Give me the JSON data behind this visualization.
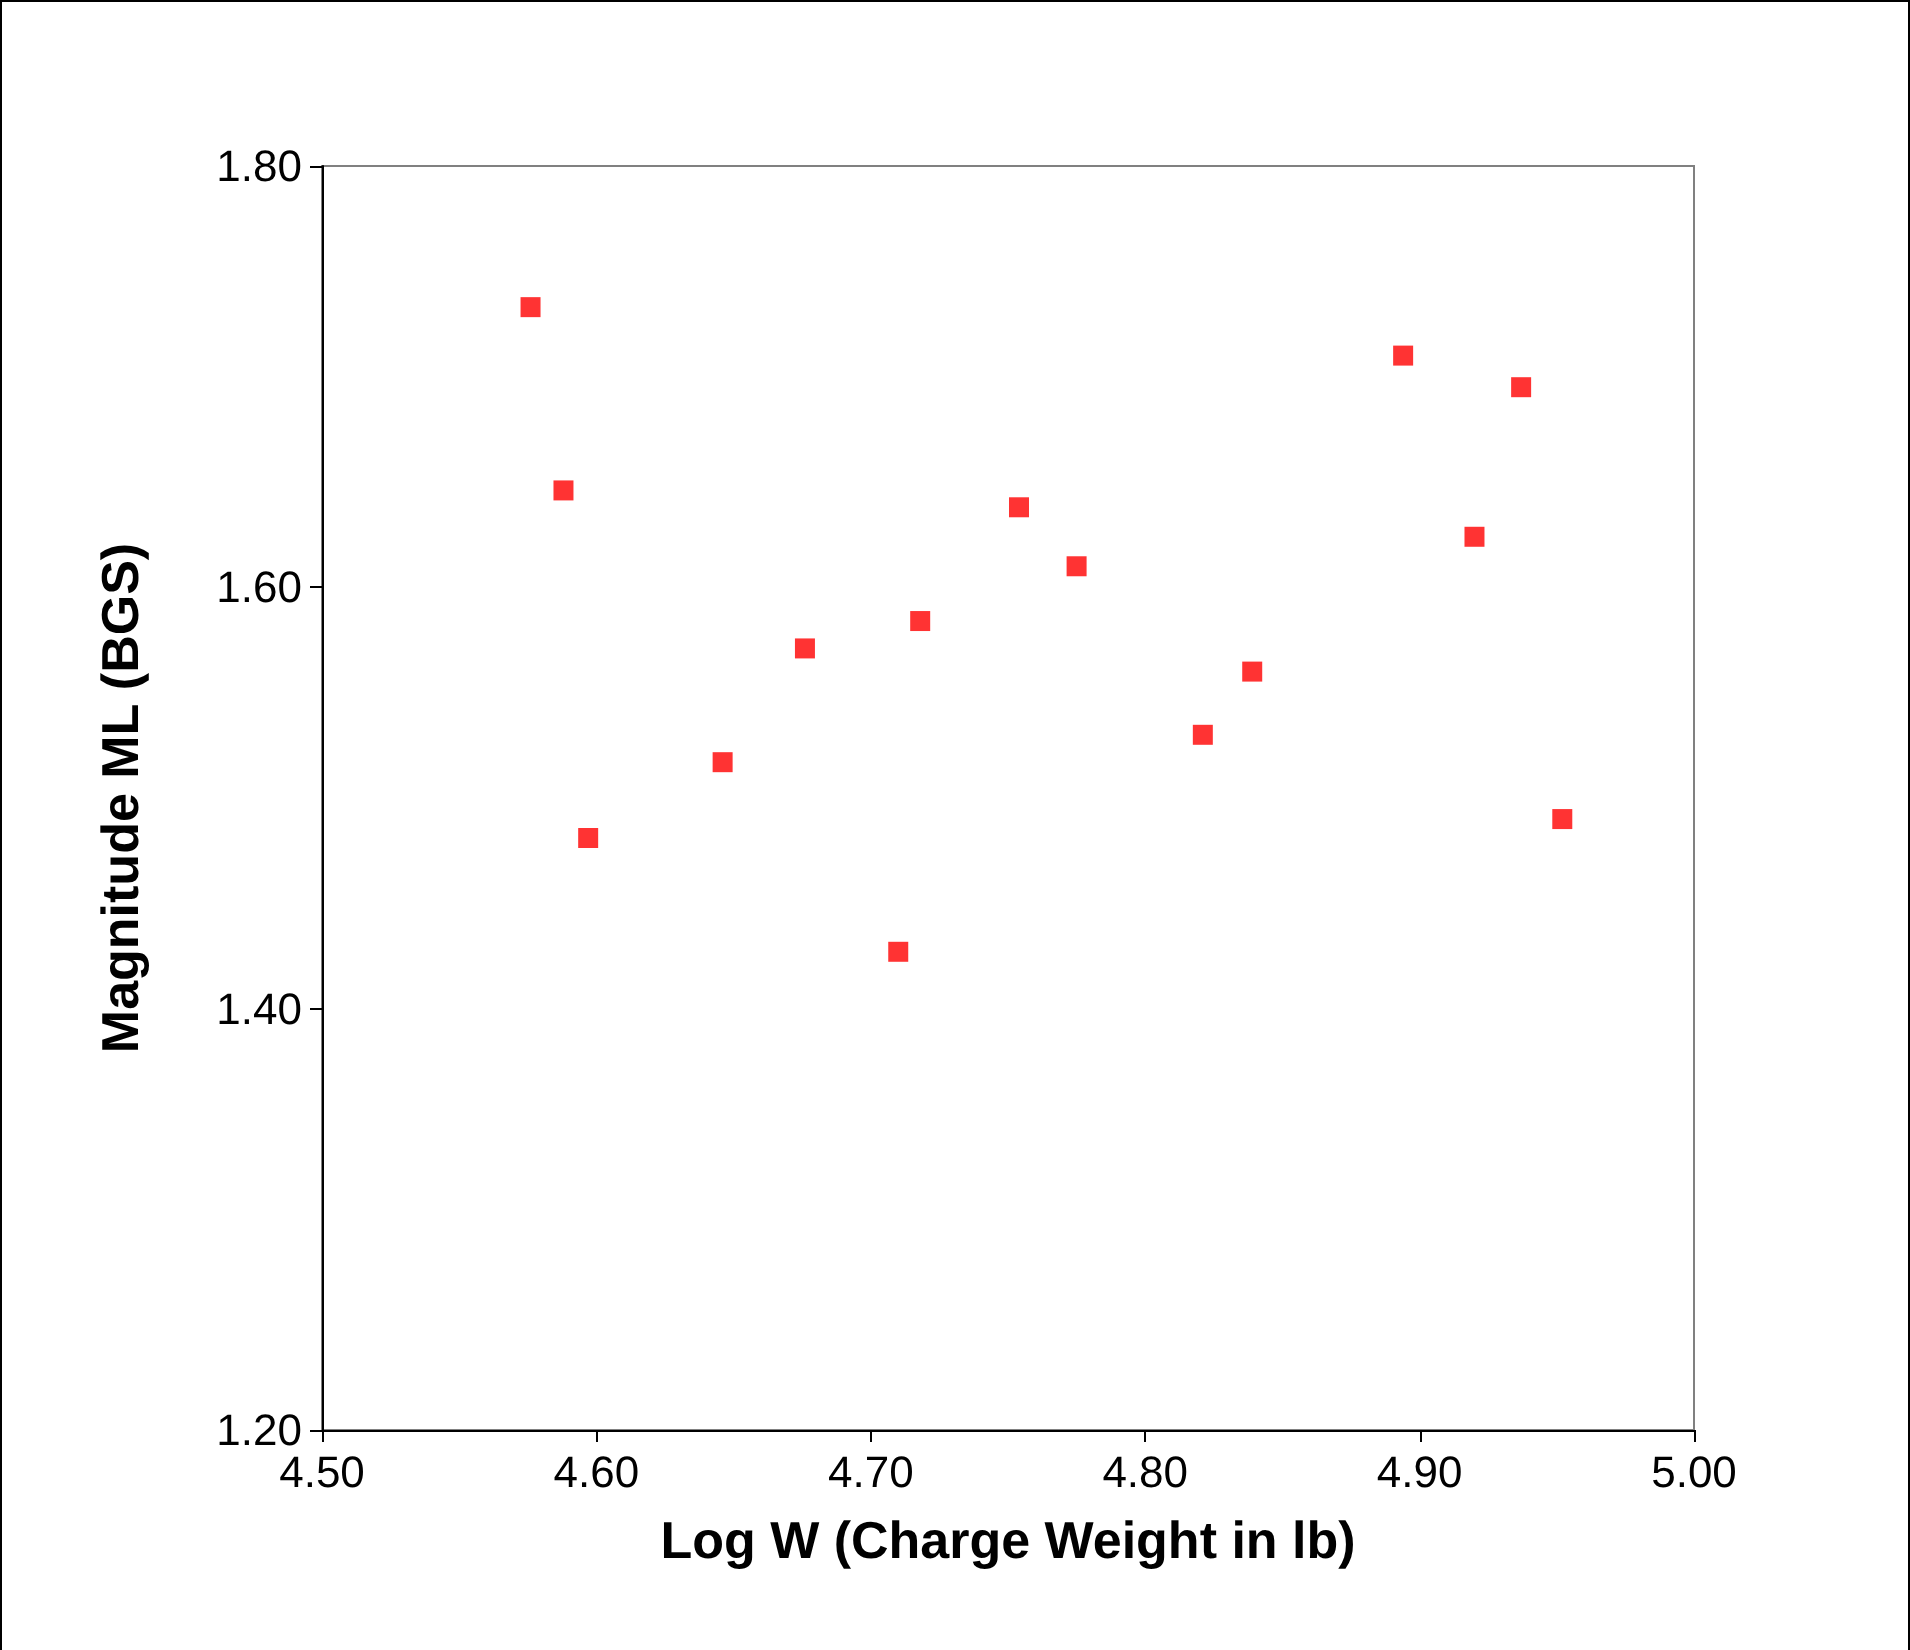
{
  "chart_data": {
    "type": "scatter",
    "xlabel": "Log W (Charge Weight in lb)",
    "ylabel": "Magnitude ML (BGS)",
    "x": [
      4.576,
      4.588,
      4.597,
      4.646,
      4.676,
      4.71,
      4.718,
      4.754,
      4.775,
      4.821,
      4.839,
      4.894,
      4.92,
      4.937,
      4.952
    ],
    "series": [
      {
        "color": "#ff0000",
        "values": [
          1.733,
          1.646,
          1.481,
          1.517,
          1.571,
          1.427,
          1.584,
          1.638,
          1.61,
          1.53,
          1.56,
          1.71,
          1.624,
          1.695,
          1.49
        ]
      }
    ],
    "marker": "square",
    "grid": false,
    "xlim": [
      4.5,
      5.0
    ],
    "xticks": [
      {
        "value": 4.5,
        "label": "4.50"
      },
      {
        "value": 4.6,
        "label": "4.60"
      },
      {
        "value": 4.7,
        "label": "4.70"
      },
      {
        "value": 4.8,
        "label": "4.80"
      },
      {
        "value": 4.9,
        "label": "4.90"
      },
      {
        "value": 5.0,
        "label": "5.00"
      }
    ],
    "ylim": [
      1.2,
      1.8
    ],
    "yticks": [
      {
        "value": 1.2,
        "label": "1.20"
      },
      {
        "value": 1.4,
        "label": "1.40"
      },
      {
        "value": 1.6,
        "label": "1.60"
      },
      {
        "value": 1.8,
        "label": "1.80"
      }
    ]
  }
}
